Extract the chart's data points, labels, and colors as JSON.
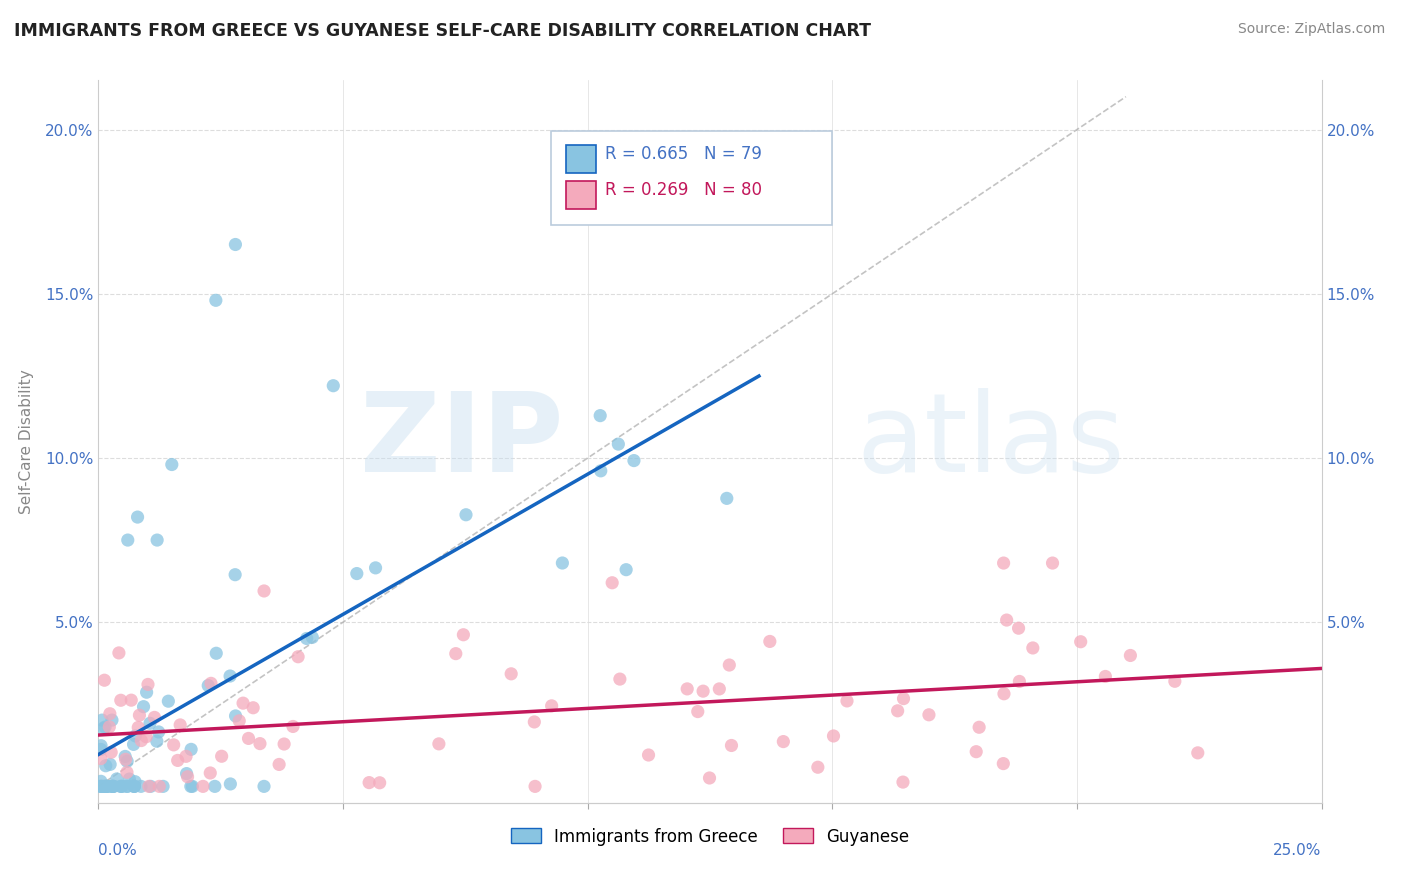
{
  "title": "IMMIGRANTS FROM GREECE VS GUYANESE SELF-CARE DISABILITY CORRELATION CHART",
  "source": "Source: ZipAtlas.com",
  "ylabel": "Self-Care Disability",
  "xmin": 0.0,
  "xmax": 0.25,
  "ymin": -0.005,
  "ymax": 0.215,
  "blue_color": "#89C4E1",
  "pink_color": "#F4AABC",
  "blue_line_color": "#1565C0",
  "pink_line_color": "#C2185B",
  "legend_r1": "R = 0.665",
  "legend_n1": "N = 79",
  "legend_r2": "R = 0.269",
  "legend_n2": "N = 80",
  "watermark_zip": "ZIP",
  "watermark_atlas": "atlas",
  "grid_color": "#DDDDDD",
  "source_color": "#888888"
}
